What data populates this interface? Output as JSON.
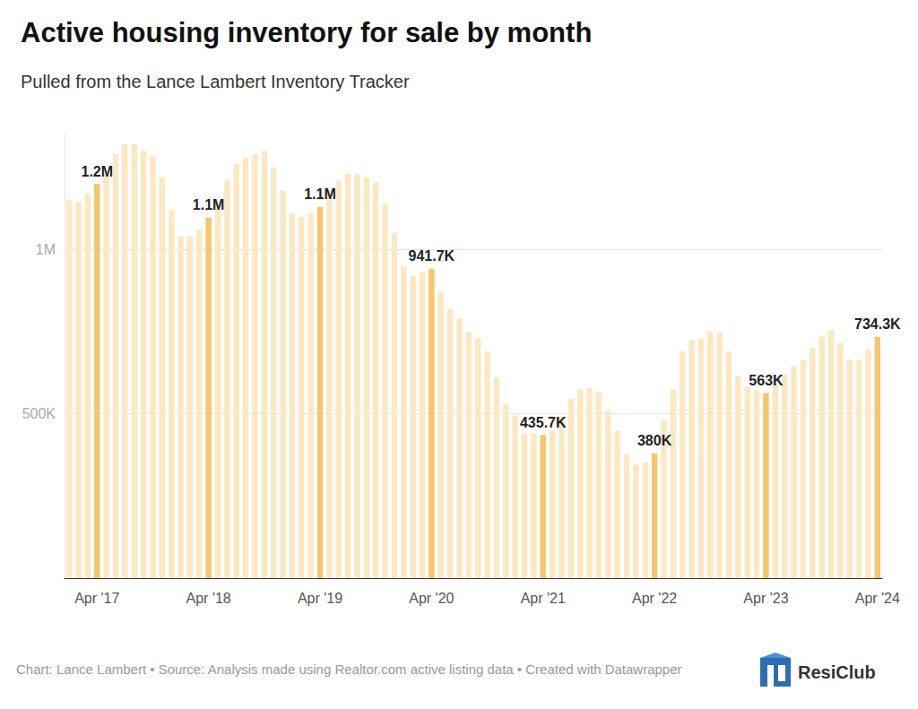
{
  "chart_data": {
    "type": "bar",
    "title": "Active housing inventory for sale by month",
    "subtitle": "Pulled from the Lance Lambert Inventory Tracker",
    "footer": "Chart: Lance Lambert • Source: Analysis made using Realtor.com active listing data • Created with Datawrapper",
    "logo": "ResiClub",
    "categories": [
      null,
      null,
      null,
      "Apr '17",
      null,
      null,
      null,
      null,
      null,
      null,
      null,
      null,
      null,
      null,
      null,
      "Apr '18",
      null,
      null,
      null,
      null,
      null,
      null,
      null,
      null,
      null,
      null,
      null,
      "Apr '19",
      null,
      null,
      null,
      null,
      null,
      null,
      null,
      null,
      null,
      null,
      null,
      "Apr '20",
      null,
      null,
      null,
      null,
      null,
      null,
      null,
      null,
      null,
      null,
      null,
      "Apr '21",
      null,
      null,
      null,
      null,
      null,
      null,
      null,
      null,
      null,
      null,
      null,
      "Apr '22",
      null,
      null,
      null,
      null,
      null,
      null,
      null,
      null,
      null,
      null,
      null,
      "Apr '23",
      null,
      null,
      null,
      null,
      null,
      null,
      null,
      null,
      null,
      null,
      null,
      "Apr '24"
    ],
    "values": [
      1150000,
      1145000,
      1170000,
      1200000,
      1230000,
      1290000,
      1320000,
      1320000,
      1300000,
      1285000,
      1220000,
      1120000,
      1040000,
      1040000,
      1060000,
      1098000,
      1150000,
      1210000,
      1260000,
      1280000,
      1290000,
      1300000,
      1250000,
      1180000,
      1110000,
      1100000,
      1110000,
      1130000,
      1180000,
      1210000,
      1230000,
      1230000,
      1220000,
      1205000,
      1140000,
      1050000,
      950000,
      920000,
      930000,
      941700,
      870000,
      820000,
      790000,
      750000,
      730000,
      690000,
      610000,
      530000,
      495000,
      440000,
      440000,
      435700,
      450000,
      490000,
      545000,
      575000,
      578000,
      565000,
      510000,
      447000,
      378000,
      345000,
      352000,
      380000,
      480000,
      575000,
      690000,
      725000,
      730000,
      752000,
      748000,
      690000,
      615000,
      580000,
      570000,
      563000,
      590000,
      620000,
      645000,
      665000,
      700000,
      735000,
      755000,
      715000,
      665000,
      665000,
      695000,
      734300
    ],
    "value_labels": [
      null,
      null,
      null,
      "1.2M",
      null,
      null,
      null,
      null,
      null,
      null,
      null,
      null,
      null,
      null,
      null,
      "1.1M",
      null,
      null,
      null,
      null,
      null,
      null,
      null,
      null,
      null,
      null,
      null,
      "1.1M",
      null,
      null,
      null,
      null,
      null,
      null,
      null,
      null,
      null,
      null,
      null,
      "941.7K",
      null,
      null,
      null,
      null,
      null,
      null,
      null,
      null,
      null,
      null,
      null,
      "435.7K",
      null,
      null,
      null,
      null,
      null,
      null,
      null,
      null,
      null,
      null,
      null,
      "380K",
      null,
      null,
      null,
      null,
      null,
      null,
      null,
      null,
      null,
      null,
      null,
      "563K",
      null,
      null,
      null,
      null,
      null,
      null,
      null,
      null,
      null,
      null,
      null,
      "734.3K"
    ],
    "colors": [
      "#fce8c2",
      "#fce8c2",
      "#fce8c2",
      "#f7c66c",
      "#fce8c2",
      "#fce8c2",
      "#fce8c2",
      "#fce8c2",
      "#fce8c2",
      "#fce8c2",
      "#fce8c2",
      "#fce8c2",
      "#fce8c2",
      "#fce8c2",
      "#fce8c2",
      "#f7c66c",
      "#fce8c2",
      "#fce8c2",
      "#fce8c2",
      "#fce8c2",
      "#fce8c2",
      "#fce8c2",
      "#fce8c2",
      "#fce8c2",
      "#fce8c2",
      "#fce8c2",
      "#fce8c2",
      "#f7c66c",
      "#fce8c2",
      "#fce8c2",
      "#fce8c2",
      "#fce8c2",
      "#fce8c2",
      "#fce8c2",
      "#fce8c2",
      "#fce8c2",
      "#fce8c2",
      "#fce8c2",
      "#fce8c2",
      "#f7c66c",
      "#fce8c2",
      "#fce8c2",
      "#fce8c2",
      "#fce8c2",
      "#fce8c2",
      "#fce8c2",
      "#fce8c2",
      "#fce8c2",
      "#fce8c2",
      "#fce8c2",
      "#fce8c2",
      "#f7c66c",
      "#fce8c2",
      "#fce8c2",
      "#fce8c2",
      "#fce8c2",
      "#fce8c2",
      "#fce8c2",
      "#fce8c2",
      "#fce8c2",
      "#fce8c2",
      "#fce8c2",
      "#fce8c2",
      "#f7c66c",
      "#fce8c2",
      "#fce8c2",
      "#fce8c2",
      "#fce8c2",
      "#fce8c2",
      "#fce8c2",
      "#fce8c2",
      "#fce8c2",
      "#fce8c2",
      "#fce8c2",
      "#fce8c2",
      "#f7c66c",
      "#fce8c2",
      "#fce8c2",
      "#fce8c2",
      "#fce8c2",
      "#fce8c2",
      "#fce8c2",
      "#fce8c2",
      "#fce8c2",
      "#fce8c2",
      "#fce8c2",
      "#fce8c2",
      "#f7c66c"
    ],
    "ylim": [
      0,
      1350000
    ],
    "yticks": [
      {
        "value": 500000,
        "label": "500K"
      },
      {
        "value": 1000000,
        "label": "1M"
      }
    ],
    "grid": true,
    "data_labels": true
  }
}
